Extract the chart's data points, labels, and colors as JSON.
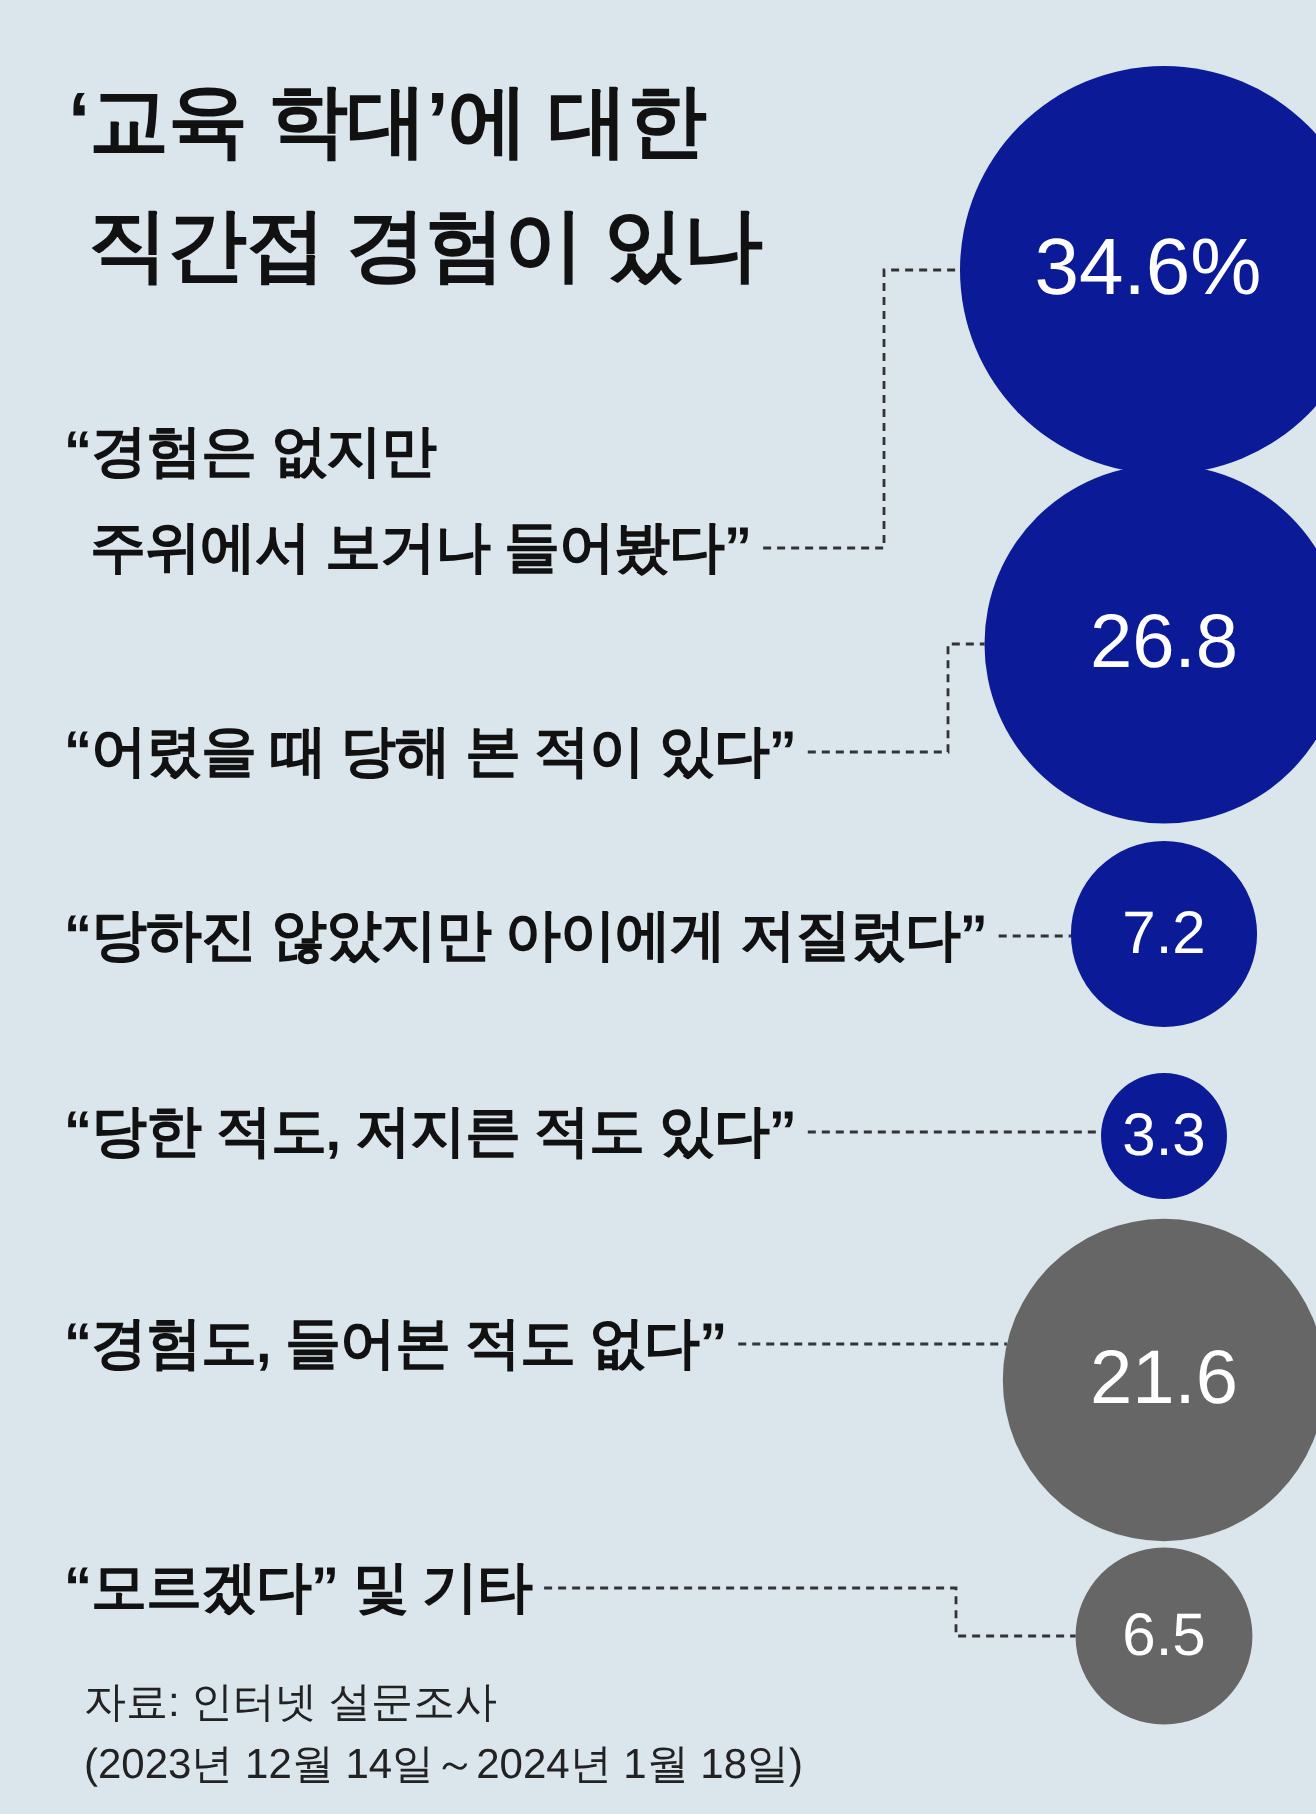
{
  "chart_data": {
    "type": "other",
    "title": "‘교육 학대’에 대한\n직간접 경험이 있나",
    "categories": [
      "“경험은 없지만\n주위에서 보거나 들어봤다”",
      "“어렸을 때 당해 본 적이 있다”",
      "“당하진 않았지만 아이에게 저질렀다”",
      "“당한 적도, 저지른 적도 있다”",
      "“경험도, 들어본 적도 없다”",
      "“모르겠다” 및 기타"
    ],
    "values": [
      34.6,
      26.8,
      7.2,
      3.3,
      21.6,
      6.5
    ],
    "colors": [
      "#0b1a96",
      "#0b1a96",
      "#0b1a96",
      "#0b1a96",
      "#666666",
      "#666666"
    ],
    "value_labels": [
      "34.6%",
      "26.8",
      "7.2",
      "3.3",
      "21.6",
      "6.5"
    ],
    "annotations": [
      "자료: 인터넷 설문조사",
      "(2023년 12월 14일～2024년 1월 18일)"
    ]
  }
}
